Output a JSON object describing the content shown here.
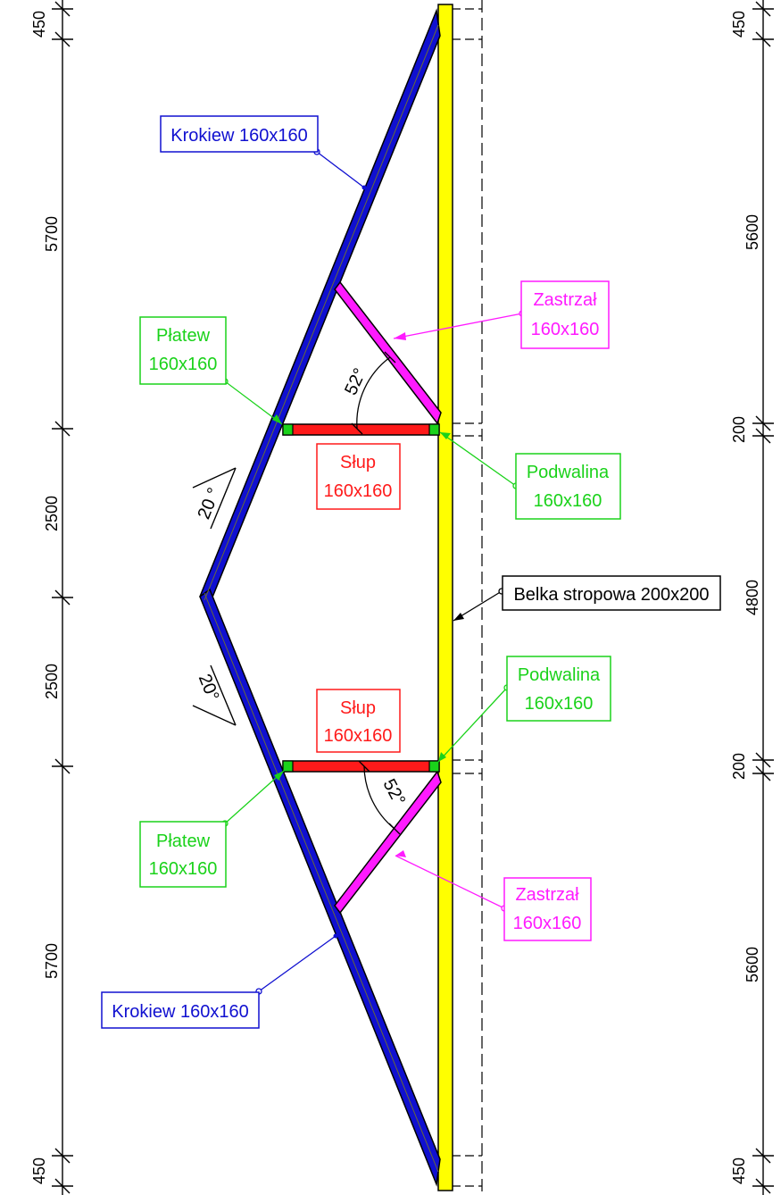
{
  "colors": {
    "rafter": "#1010d0",
    "beam": "#ffff00",
    "column": "#ff1a1a",
    "brace": "#ff1aff",
    "green": "#1ad21a",
    "line": "#000000"
  },
  "dimensions_left": [
    "450",
    "5700",
    "2500",
    "2500",
    "5700",
    "450"
  ],
  "dimensions_right": [
    "450",
    "5600",
    "200",
    "4800",
    "200",
    "5600",
    "450"
  ],
  "angles": {
    "brace_top": "52°",
    "brace_bottom": "52°",
    "roof_top": "20 °",
    "roof_bottom": "20°"
  },
  "labels": {
    "krokiew_top": "Krokiew 160x160",
    "krokiew_bottom": "Krokiew 160x160",
    "zastrzal_top_1": "Zastrzał",
    "zastrzal_top_2": "160x160",
    "zastrzal_bottom_1": "Zastrzał",
    "zastrzal_bottom_2": "160x160",
    "platew_top_1": "Płatew",
    "platew_top_2": "160x160",
    "platew_bottom_1": "Płatew",
    "platew_bottom_2": "160x160",
    "slup_top_1": "Słup",
    "slup_top_2": "160x160",
    "slup_bottom_1": "Słup",
    "slup_bottom_2": "160x160",
    "podwalina_top_1": "Podwalina",
    "podwalina_top_2": "160x160",
    "podwalina_bottom_1": "Podwalina",
    "podwalina_bottom_2": "160x160",
    "belka": "Belka stropowa 200x200"
  }
}
